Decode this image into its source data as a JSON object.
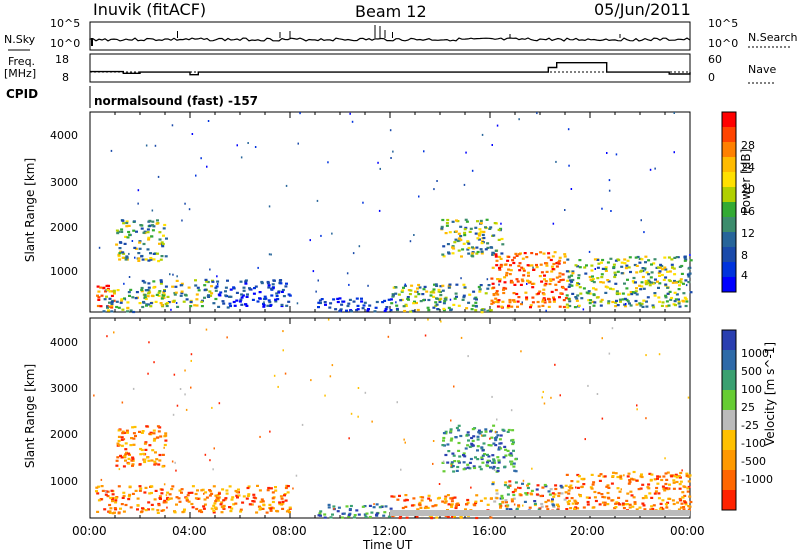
{
  "header": {
    "station": "Inuvik (fitACF)",
    "beam": "Beam 12",
    "date": "05/Jun/2011"
  },
  "left_labels": {
    "nsky": "N.Sky",
    "freq_1": "Freq.",
    "freq_2": "[MHz]",
    "cpid": "CPID"
  },
  "right_labels": {
    "nsearch": "N.Search",
    "nave": "Nave"
  },
  "cpid_text": "normalsound (fast) -157",
  "chart_data": [
    {
      "type": "line",
      "title": "",
      "series": [
        {
          "name": "N.Sky",
          "y_range_labels": [
            "10^5",
            "10^0"
          ]
        },
        {
          "name": "N.Search",
          "y_range_labels": [
            "10^5",
            "10^0"
          ]
        }
      ],
      "left_ticks": [
        "10^5",
        "10^0"
      ],
      "right_ticks": [
        "10^5",
        "10^0"
      ]
    },
    {
      "type": "line",
      "series": [
        {
          "name": "Freq.",
          "unit": "MHz",
          "x": [
            "00:00",
            "00:40",
            "01:20",
            "02:00",
            "02:40",
            "03:20",
            "04:00",
            "04:20",
            "06:00",
            "08:00",
            "10:00",
            "12:00",
            "14:00",
            "16:00",
            "18:00",
            "18:20",
            "18:40",
            "20:00",
            "20:40",
            "22:00",
            "23:10",
            "24:00"
          ],
          "values": [
            11.5,
            11.5,
            10.8,
            11.3,
            11.3,
            11.3,
            10.2,
            11.3,
            11.3,
            11.3,
            11.3,
            11.3,
            11.3,
            11.3,
            11.3,
            13.2,
            15.2,
            15.2,
            11.3,
            11.3,
            10.5,
            11.3
          ]
        },
        {
          "name": "Nave",
          "x": [
            "00:00",
            "24:00"
          ],
          "values": [
            20,
            20
          ]
        }
      ],
      "left_ticks": [
        "18",
        "8"
      ],
      "right_ticks": [
        "60",
        "0"
      ]
    },
    {
      "type": "heatmap",
      "variable": "Power",
      "ylabel": "Slant Range [km]",
      "yticks": [
        "1000",
        "2000",
        "3000",
        "4000"
      ],
      "ylim": [
        180,
        4500
      ],
      "colorbar_label": "Power [dB]",
      "colorbar_ticks": [
        "28",
        "24",
        "20",
        "16",
        "12",
        "8",
        "4"
      ],
      "colorbar_colors": [
        "#ff0000",
        "#ff4400",
        "#ff8000",
        "#ffbb00",
        "#ffe000",
        "#b0d000",
        "#33aa33",
        "#3c8c6c",
        "#27659a",
        "#1a4aaa",
        "#0033dd",
        "#0000ff"
      ],
      "scatter_bands": [
        {
          "t": [
            0.2,
            1.0
          ],
          "r": [
            300,
            800
          ],
          "level": "high"
        },
        {
          "t": [
            0.5,
            2.5
          ],
          "r": [
            200,
            700
          ],
          "level": "mid"
        },
        {
          "t": [
            1.0,
            3.0
          ],
          "r": [
            1300,
            2200
          ],
          "level": "mid"
        },
        {
          "t": [
            2.0,
            5.0
          ],
          "r": [
            300,
            900
          ],
          "level": "mid"
        },
        {
          "t": [
            5.0,
            8.0
          ],
          "r": [
            300,
            900
          ],
          "level": "low"
        },
        {
          "t": [
            9.0,
            12.0
          ],
          "r": [
            200,
            500
          ],
          "level": "low"
        },
        {
          "t": [
            12.0,
            16.0
          ],
          "r": [
            200,
            800
          ],
          "level": "mid"
        },
        {
          "t": [
            14.0,
            16.5
          ],
          "r": [
            1400,
            2200
          ],
          "level": "mid"
        },
        {
          "t": [
            16.0,
            19.0
          ],
          "r": [
            300,
            1500
          ],
          "level": "high"
        },
        {
          "t": [
            19.0,
            24.0
          ],
          "r": [
            300,
            1400
          ],
          "level": "mid"
        }
      ]
    },
    {
      "type": "heatmap",
      "variable": "Velocity",
      "ylabel": "Slant Range [km]",
      "yticks": [
        "1000",
        "2000",
        "3000",
        "4000"
      ],
      "ylim": [
        180,
        4500
      ],
      "colorbar_label": "Velocity [m s^-1]",
      "colorbar_ticks": [
        "1000",
        "500",
        "100",
        "25",
        "-25",
        "-100",
        "-500",
        "-1000"
      ],
      "colorbar_colors": [
        "#2a3fb0",
        "#2e6aa8",
        "#3aa070",
        "#66cc33",
        "#bbbbbb",
        "#ffc000",
        "#ff9900",
        "#ff6600",
        "#ff2200"
      ],
      "xlabel": "Time UT",
      "xticks": [
        "00:00",
        "04:00",
        "08:00",
        "12:00",
        "16:00",
        "20:00",
        "00:00"
      ],
      "scatter_bands": [
        {
          "t": [
            0.2,
            3.0
          ],
          "r": [
            300,
            900
          ],
          "level": "neg"
        },
        {
          "t": [
            1.0,
            3.0
          ],
          "r": [
            1300,
            2200
          ],
          "level": "neg"
        },
        {
          "t": [
            3.0,
            8.0
          ],
          "r": [
            300,
            900
          ],
          "level": "neg"
        },
        {
          "t": [
            9.0,
            12.0
          ],
          "r": [
            200,
            500
          ],
          "level": "pos"
        },
        {
          "t": [
            12.0,
            16.0
          ],
          "r": [
            200,
            700
          ],
          "level": "neg"
        },
        {
          "t": [
            14.0,
            17.0
          ],
          "r": [
            1200,
            2200
          ],
          "level": "pos"
        },
        {
          "t": [
            16.0,
            19.0
          ],
          "r": [
            300,
            1000
          ],
          "level": "mix"
        },
        {
          "t": [
            19.0,
            24.0
          ],
          "r": [
            300,
            1200
          ],
          "level": "neg"
        }
      ]
    }
  ]
}
